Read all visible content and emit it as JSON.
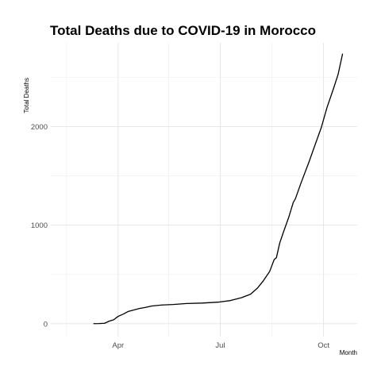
{
  "chart_data": {
    "type": "line",
    "title": "Total Deaths due to COVID-19 in Morocco",
    "xlabel": "Month",
    "ylabel": "Total Deaths",
    "x_ticks": [
      "Apr",
      "Jul",
      "Oct"
    ],
    "y_ticks": [
      "0",
      "1000",
      "2000"
    ],
    "xlim": [
      "2020-02-01",
      "2020-10-31"
    ],
    "ylim": [
      -130,
      2850
    ],
    "grid": true,
    "legend": "none",
    "series": [
      {
        "color": "#000000",
        "points": [
          [
            "2020-03-10",
            1
          ],
          [
            "2020-03-15",
            2
          ],
          [
            "2020-03-20",
            5
          ],
          [
            "2020-03-24",
            26
          ],
          [
            "2020-03-28",
            40
          ],
          [
            "2020-04-01",
            75
          ],
          [
            "2020-04-06",
            100
          ],
          [
            "2020-04-10",
            125
          ],
          [
            "2020-04-15",
            140
          ],
          [
            "2020-04-20",
            155
          ],
          [
            "2020-04-25",
            165
          ],
          [
            "2020-05-01",
            180
          ],
          [
            "2020-05-10",
            190
          ],
          [
            "2020-05-20",
            195
          ],
          [
            "2020-06-01",
            205
          ],
          [
            "2020-06-15",
            210
          ],
          [
            "2020-06-30",
            220
          ],
          [
            "2020-07-10",
            235
          ],
          [
            "2020-07-20",
            265
          ],
          [
            "2020-07-28",
            300
          ],
          [
            "2020-08-03",
            360
          ],
          [
            "2020-08-08",
            430
          ],
          [
            "2020-08-14",
            530
          ],
          [
            "2020-08-18",
            650
          ],
          [
            "2020-08-20",
            670
          ],
          [
            "2020-08-23",
            820
          ],
          [
            "2020-08-26",
            920
          ],
          [
            "2020-08-31",
            1080
          ],
          [
            "2020-09-04",
            1230
          ],
          [
            "2020-09-06",
            1270
          ],
          [
            "2020-09-11",
            1430
          ],
          [
            "2020-09-18",
            1640
          ],
          [
            "2020-09-23",
            1800
          ],
          [
            "2020-09-29",
            1990
          ],
          [
            "2020-10-04",
            2190
          ],
          [
            "2020-10-10",
            2390
          ],
          [
            "2020-10-14",
            2530
          ],
          [
            "2020-10-18",
            2740
          ]
        ]
      }
    ]
  }
}
